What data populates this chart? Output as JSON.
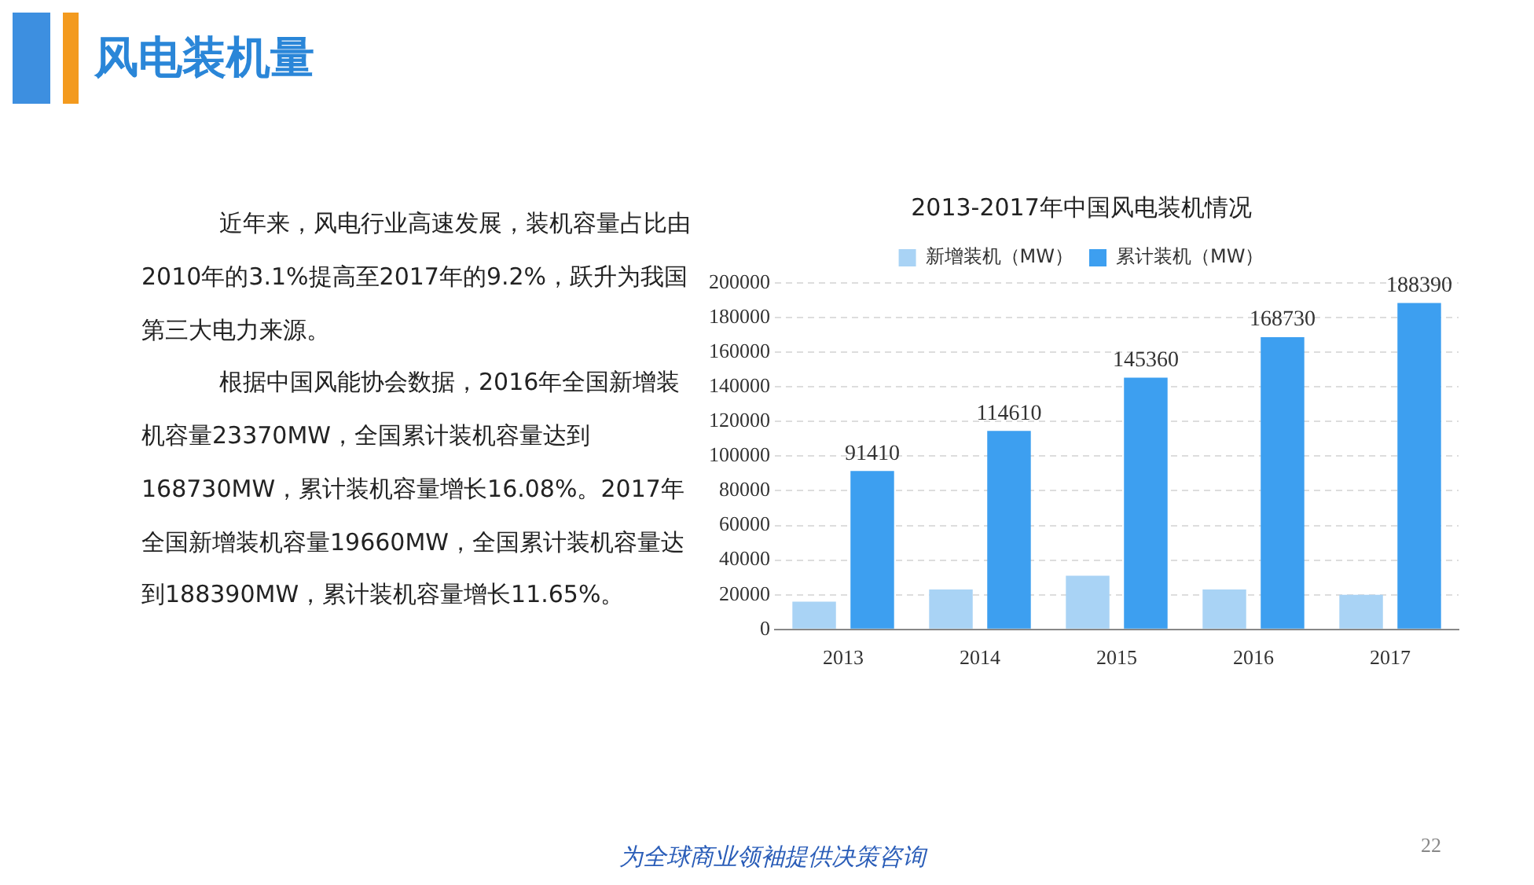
{
  "chart_data": {
    "type": "bar",
    "title": "风电装机量",
    "subtitle": "2013-2017年中国风电装机情况",
    "annotations": [
      "近年来，风电行业高速发展，装机容量占比由2010年的3.1%提高至2017年的9.2%，跃升为我国第三大电力来源。",
      "根据中国风能协会数据，2016年全国新增装机容量23370MW，全国累计装机容量达到168730MW，累计装机容量增长16.08%。2017年全国新增装机容量19660MW，全国累计装机容量达到188390MW，累计装机容量增长11.65%。",
      "为全球商业领袖提供决策咨询",
      "22"
    ],
    "categories": [
      "2013",
      "2014",
      "2015",
      "2016",
      "2017"
    ],
    "series": [
      {
        "name": "新增装机（MW）",
        "color": "#a9d3f5",
        "values": [
          16000,
          23000,
          31000,
          23000,
          20000
        ]
      },
      {
        "name": "累计装机（MW）",
        "color": "#3d9ff0",
        "values": [
          91410,
          114610,
          145360,
          168730,
          188390
        ],
        "value_labels": [
          "91410",
          "114610",
          "145360",
          "168730",
          "188390"
        ]
      }
    ],
    "ylim": [
      0,
      200000
    ],
    "yticks": [
      0,
      20000,
      40000,
      60000,
      80000,
      100000,
      120000,
      140000,
      160000,
      180000,
      200000
    ],
    "grid": "y",
    "legend": "top"
  }
}
